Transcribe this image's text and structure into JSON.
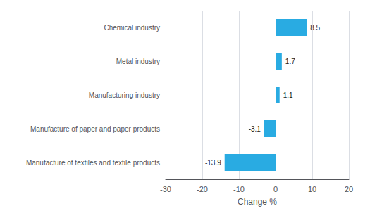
{
  "chart_data": {
    "type": "bar",
    "orientation": "horizontal",
    "categories": [
      "Manufacture of textiles and textile products",
      "Manufacture of paper and paper products",
      "Manufacturing industry",
      "Metal industry",
      "Chemical industry"
    ],
    "values": [
      -13.9,
      -3.1,
      1.1,
      1.7,
      8.5
    ],
    "color": "#29abe2",
    "xlabel": "Change %",
    "xlim": [
      -30,
      20
    ],
    "xticks": [
      -30,
      -20,
      -10,
      0,
      10,
      20
    ],
    "grid": true,
    "data_labels": true
  }
}
